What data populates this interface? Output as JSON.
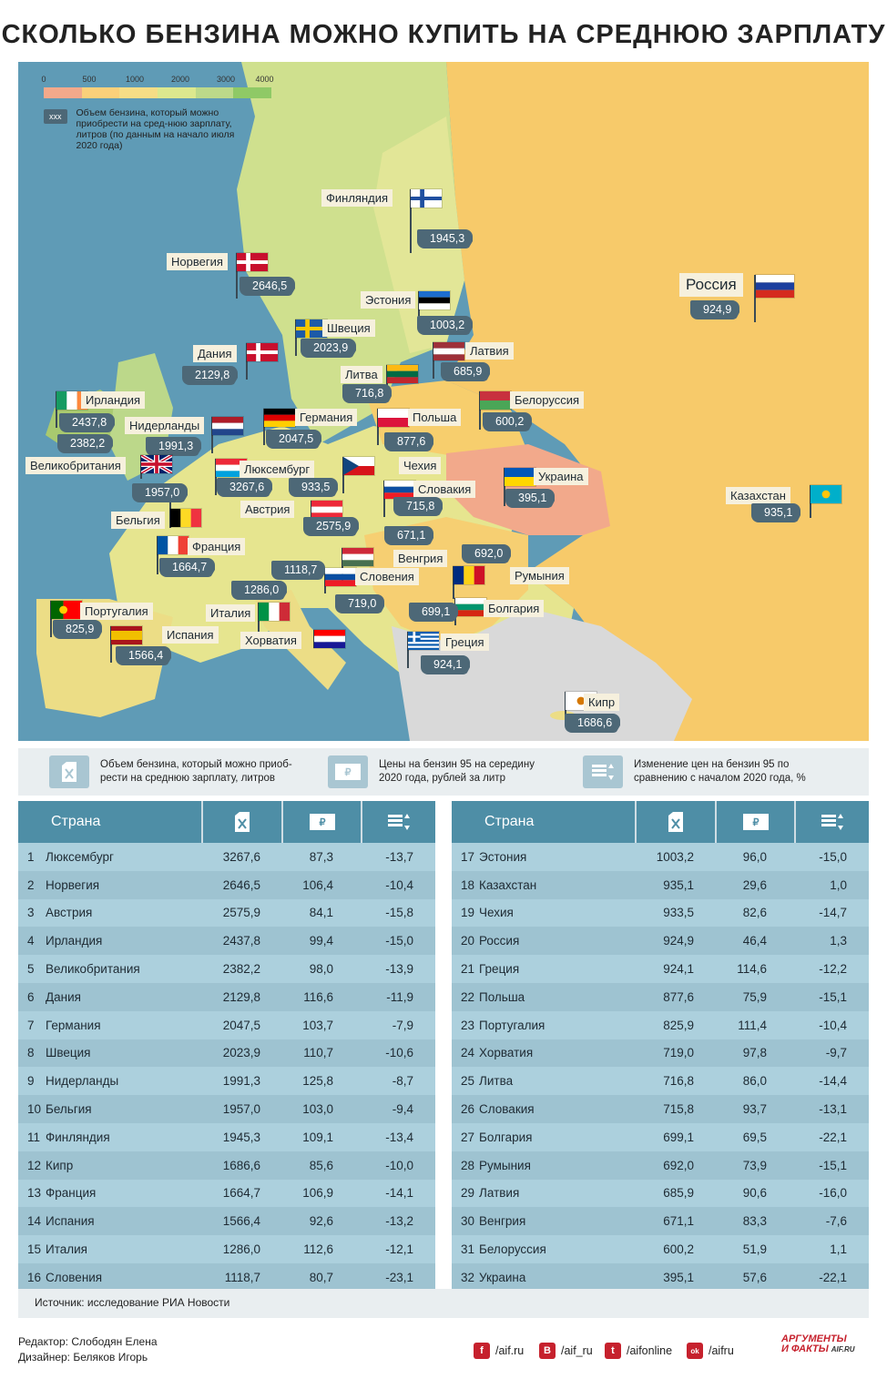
{
  "title": "СКОЛЬКО БЕНЗИНА МОЖНО КУПИТЬ НА СРЕДНЮЮ ЗАРПЛАТУ",
  "legend": {
    "ticks": [
      "0",
      "500",
      "1000",
      "2000",
      "3000",
      "4000"
    ],
    "colors": [
      "#f2a98b",
      "#fbd07a",
      "#f6dd86",
      "#dce88e",
      "#bcd98a",
      "#8fc966"
    ],
    "xxx": "xxx",
    "note": "Объем бензина, который можно приобрести на сред-нюю зарплату, литров (по данным на начало июля 2020 года)"
  },
  "map_labels": [
    {
      "id": "finland",
      "name": "Финляндия",
      "value": "1945,3"
    },
    {
      "id": "norway",
      "name": "Норвегия",
      "value": "2646,5"
    },
    {
      "id": "estonia",
      "name": "Эстония",
      "value": "1003,2"
    },
    {
      "id": "russia",
      "name": "Россия",
      "value": "924,9"
    },
    {
      "id": "sweden",
      "name": "Швеция",
      "value": "2023,9"
    },
    {
      "id": "denmark",
      "name": "Дания",
      "value": "2129,8"
    },
    {
      "id": "latvia",
      "name": "Латвия",
      "value": "685,9"
    },
    {
      "id": "lithuania",
      "name": "Литва",
      "value": "716,8"
    },
    {
      "id": "ireland",
      "name": "Ирландия",
      "value": "2437,8"
    },
    {
      "id": "belarus",
      "name": "Белоруссия",
      "value": "600,2"
    },
    {
      "id": "netherlands",
      "name": "Нидерланды",
      "value": "1991,3"
    },
    {
      "id": "germany",
      "name": "Германия",
      "value": "2047,5"
    },
    {
      "id": "poland",
      "name": "Польша",
      "value": "877,6"
    },
    {
      "id": "uk",
      "name": "Великобритания",
      "value": "2382,2"
    },
    {
      "id": "luxembourg",
      "name": "Люксембург",
      "value": "3267,6"
    },
    {
      "id": "czech",
      "name": "Чехия",
      "value": "933,5"
    },
    {
      "id": "ukraine",
      "name": "Украина",
      "value": "395,1"
    },
    {
      "id": "slovakia",
      "name": "Словакия",
      "value": "715,8"
    },
    {
      "id": "belgium",
      "name": "Бельгия",
      "value": "1957,0"
    },
    {
      "id": "austria",
      "name": "Австрия",
      "value": "2575,9"
    },
    {
      "id": "kazakhstan",
      "name": "Казахстан",
      "value": "935,1"
    },
    {
      "id": "hungary",
      "name": "Венгрия",
      "value": "671,1"
    },
    {
      "id": "france",
      "name": "Франция",
      "value": "1664,7"
    },
    {
      "id": "slovenia",
      "name": "Словения",
      "value": "1118,7"
    },
    {
      "id": "romania",
      "name": "Румыния",
      "value": "692,0"
    },
    {
      "id": "italy",
      "name": "Италия",
      "value": "1286,0"
    },
    {
      "id": "croatia",
      "name": "Хорватия",
      "value": "719,0"
    },
    {
      "id": "portugal",
      "name": "Португалия",
      "value": "825,9"
    },
    {
      "id": "bulgaria",
      "name": "Болгария",
      "value": "699,1"
    },
    {
      "id": "spain",
      "name": "Испания",
      "value": "1566,4"
    },
    {
      "id": "greece",
      "name": "Греция",
      "value": "924,1"
    },
    {
      "id": "cyprus",
      "name": "Кипр",
      "value": "1686,6"
    }
  ],
  "infobar": {
    "volume": "Объем бензина, который можно приоб-рести на среднюю зарплату, литров",
    "price": "Цены на бензин 95 на середину 2020 года, рублей за литр",
    "change": "Изменение цен на бензин 95 по сравнению с началом 2020 года, %"
  },
  "table": {
    "header": "Страна",
    "left": [
      [
        "1",
        "Люксембург",
        "3267,6",
        "87,3",
        "-13,7"
      ],
      [
        "2",
        "Норвегия",
        "2646,5",
        "106,4",
        "-10,4"
      ],
      [
        "3",
        "Австрия",
        "2575,9",
        "84,1",
        "-15,8"
      ],
      [
        "4",
        "Ирландия",
        "2437,8",
        "99,4",
        "-15,0"
      ],
      [
        "5",
        "Великобритания",
        "2382,2",
        "98,0",
        "-13,9"
      ],
      [
        "6",
        "Дания",
        "2129,8",
        "116,6",
        "-11,9"
      ],
      [
        "7",
        "Германия",
        "2047,5",
        "103,7",
        "-7,9"
      ],
      [
        "8",
        "Швеция",
        "2023,9",
        "110,7",
        "-10,6"
      ],
      [
        "9",
        "Нидерланды",
        "1991,3",
        "125,8",
        "-8,7"
      ],
      [
        "10",
        "Бельгия",
        "1957,0",
        "103,0",
        "-9,4"
      ],
      [
        "11",
        "Финляндия",
        "1945,3",
        "109,1",
        "-13,4"
      ],
      [
        "12",
        "Кипр",
        "1686,6",
        "85,6",
        "-10,0"
      ],
      [
        "13",
        "Франция",
        "1664,7",
        "106,9",
        "-14,1"
      ],
      [
        "14",
        "Испания",
        "1566,4",
        "92,6",
        "-13,2"
      ],
      [
        "15",
        "Италия",
        "1286,0",
        "112,6",
        "-12,1"
      ],
      [
        "16",
        "Словения",
        "1118,7",
        "80,7",
        "-23,1"
      ]
    ],
    "right": [
      [
        "17",
        "Эстония",
        "1003,2",
        "96,0",
        "-15,0"
      ],
      [
        "18",
        "Казахстан",
        "935,1",
        "29,6",
        "1,0"
      ],
      [
        "19",
        "Чехия",
        "933,5",
        "82,6",
        "-14,7"
      ],
      [
        "20",
        "Россия",
        "924,9",
        "46,4",
        "1,3"
      ],
      [
        "21",
        "Греция",
        "924,1",
        "114,6",
        "-12,2"
      ],
      [
        "22",
        "Польша",
        "877,6",
        "75,9",
        "-15,1"
      ],
      [
        "23",
        "Португалия",
        "825,9",
        "111,4",
        "-10,4"
      ],
      [
        "24",
        "Хорватия",
        "719,0",
        "97,8",
        "-9,7"
      ],
      [
        "25",
        "Литва",
        "716,8",
        "86,0",
        "-14,4"
      ],
      [
        "26",
        "Словакия",
        "715,8",
        "93,7",
        "-13,1"
      ],
      [
        "27",
        "Болгария",
        "699,1",
        "69,5",
        "-22,1"
      ],
      [
        "28",
        "Румыния",
        "692,0",
        "73,9",
        "-15,1"
      ],
      [
        "29",
        "Латвия",
        "685,9",
        "90,6",
        "-16,0"
      ],
      [
        "30",
        "Венгрия",
        "671,1",
        "83,3",
        "-7,6"
      ],
      [
        "31",
        "Белоруссия",
        "600,2",
        "51,9",
        "1,1"
      ],
      [
        "32",
        "Украина",
        "395,1",
        "57,6",
        "-22,1"
      ]
    ]
  },
  "source": "Источник: исследование РИА Новости",
  "credits": {
    "editor": "Редактор: Слободян Елена",
    "designer": "Дизайнер: Беляков Игорь"
  },
  "social": [
    {
      "icon": "f",
      "label": "/aif.ru"
    },
    {
      "icon": "B",
      "label": "/aif_ru"
    },
    {
      "icon": "t",
      "label": "/aifonline"
    },
    {
      "icon": "ok",
      "label": "/aifru"
    }
  ],
  "brand": {
    "line1": "АРГУМЕНТЫ",
    "line2": "И ФАКТЫ",
    "site": "AIF.RU"
  }
}
